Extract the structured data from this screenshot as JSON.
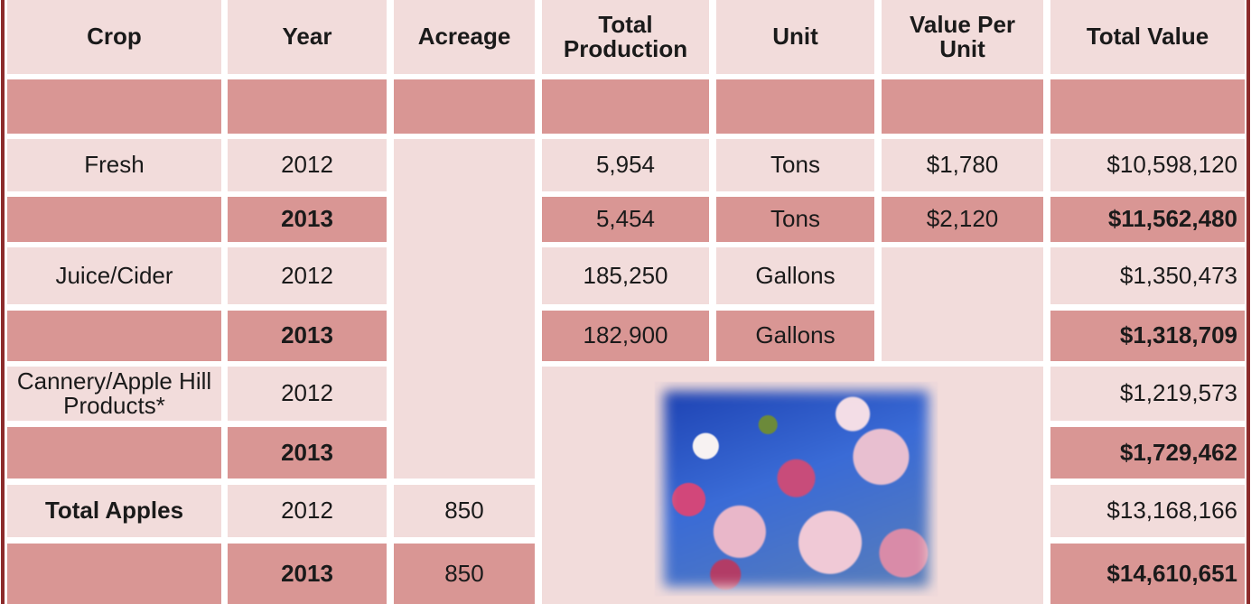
{
  "table": {
    "headers": [
      "Crop",
      "Year",
      "Acreage",
      "Total Production",
      "Unit",
      "Value Per Unit",
      "Total Value"
    ],
    "rows": [
      {
        "crop": "Fresh",
        "year": "2012",
        "production": "5,954",
        "unit": "Tons",
        "value_per_unit": "$1,780",
        "total_value": "$10,598,120"
      },
      {
        "year": "2013",
        "production": "5,454",
        "unit": "Tons",
        "value_per_unit": "$2,120",
        "total_value": "$11,562,480"
      },
      {
        "crop": "Juice/Cider",
        "year": "2012",
        "production": "185,250",
        "unit": "Gallons",
        "total_value": "$1,350,473"
      },
      {
        "year": "2013",
        "production": "182,900",
        "unit": "Gallons",
        "total_value": "$1,318,709"
      },
      {
        "crop": "Cannery/Apple Hill Products*",
        "year": "2012",
        "total_value": "$1,219,573"
      },
      {
        "year": "2013",
        "total_value": "$1,729,462"
      },
      {
        "crop": "Total Apples",
        "year": "2012",
        "acreage": "850",
        "total_value": "$13,168,166"
      },
      {
        "year": "2013",
        "acreage": "850",
        "total_value": "$14,610,651"
      }
    ]
  }
}
